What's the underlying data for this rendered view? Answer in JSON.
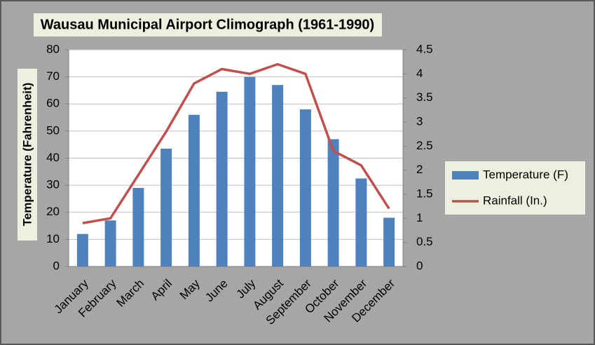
{
  "chart_data": {
    "type": "bar-line",
    "title": "Wausau Municipal Airport Climograph (1961-1990)",
    "y_label": "Temperature (Fahrenheit)",
    "categories": [
      "January",
      "February",
      "March",
      "April",
      "May",
      "June",
      "July",
      "August",
      "September",
      "October",
      "November",
      "December"
    ],
    "series": [
      {
        "name": "Temperature (F)",
        "type": "bar",
        "color": "#4f81bd",
        "values": [
          12,
          17,
          29,
          43.5,
          56,
          64.5,
          70,
          67,
          58,
          47,
          32.5,
          18
        ]
      },
      {
        "name": "Rainfall (In.)",
        "type": "line",
        "axis": "y2",
        "color": "#c0504d",
        "values": [
          0.9,
          1.0,
          1.9,
          2.8,
          3.8,
          4.1,
          4.0,
          4.2,
          4.0,
          2.4,
          2.1,
          1.2
        ]
      }
    ],
    "ylim": [
      0,
      80
    ],
    "yticks": [
      0,
      10,
      20,
      30,
      40,
      50,
      60,
      70,
      80
    ],
    "y2lim": [
      0,
      4.5
    ],
    "y2ticks": [
      0,
      0.5,
      1,
      1.5,
      2,
      2.5,
      3,
      3.5,
      4,
      4.5
    ],
    "grid": true,
    "legend": "right"
  }
}
